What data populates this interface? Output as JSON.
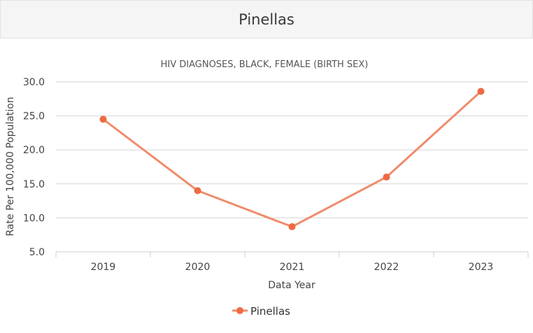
{
  "header": {
    "title": "Pinellas"
  },
  "chart_data": {
    "type": "line",
    "title": "HIV DIAGNOSES, BLACK, FEMALE (BIRTH SEX)",
    "xlabel": "Data Year",
    "ylabel": "Rate Per 100,000 Population",
    "categories": [
      "2019",
      "2020",
      "2021",
      "2022",
      "2023"
    ],
    "yticks": [
      "5.0",
      "10.0",
      "15.0",
      "20.0",
      "25.0",
      "30.0"
    ],
    "ylim": [
      5,
      30
    ],
    "grid": true,
    "legend_position": "bottom",
    "series": [
      {
        "name": "Pinellas",
        "color": "#ef8c6c",
        "marker_color": "#ee6a43",
        "values": [
          24.5,
          14.0,
          8.7,
          16.0,
          28.6
        ]
      }
    ]
  }
}
